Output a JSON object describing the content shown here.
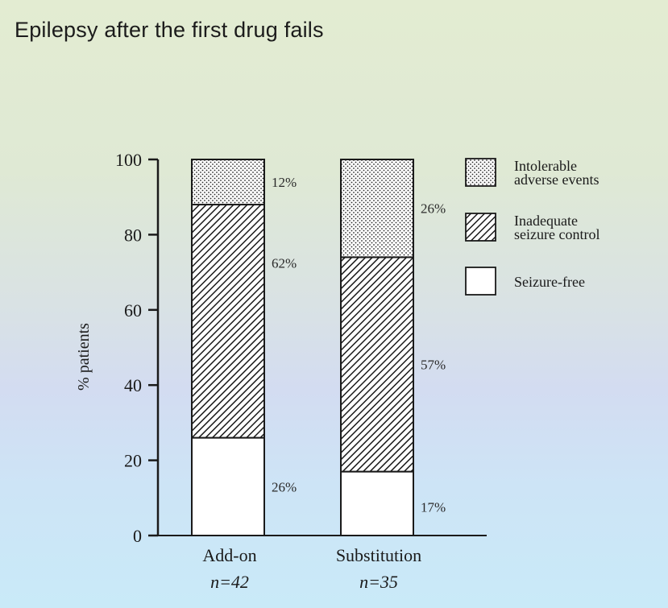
{
  "title": "Epilepsy after the first drug fails",
  "chart_data": {
    "type": "bar",
    "stacked": true,
    "ylabel": "% patients",
    "ylim": [
      0,
      100
    ],
    "yticks": [
      "0",
      "20",
      "40",
      "60",
      "80",
      "100"
    ],
    "categories": [
      "Add-on",
      "Substitution"
    ],
    "category_notes": [
      "n=42",
      "n=35"
    ],
    "series": [
      {
        "name": "Seizure-free",
        "values": [
          26,
          17
        ],
        "labels": [
          "26%",
          "17%"
        ],
        "pattern": "plain"
      },
      {
        "name": "Inadequate seizure control",
        "values": [
          62,
          57
        ],
        "labels": [
          "62%",
          "57%"
        ],
        "pattern": "hatch"
      },
      {
        "name": "Intolerable adverse events",
        "values": [
          12,
          26
        ],
        "labels": [
          "12%",
          "26%"
        ],
        "pattern": "dots"
      }
    ],
    "legend": {
      "position": "right",
      "entries": [
        {
          "lines": [
            "Intolerable",
            "adverse events"
          ],
          "pattern": "dots"
        },
        {
          "lines": [
            "Inadequate",
            "seizure control"
          ],
          "pattern": "hatch"
        },
        {
          "lines": [
            "Seizure-free"
          ],
          "pattern": "plain"
        }
      ]
    },
    "colors": {
      "ink": "#1a1a1a",
      "bar_fill": "#ffffff"
    },
    "grid": false
  }
}
